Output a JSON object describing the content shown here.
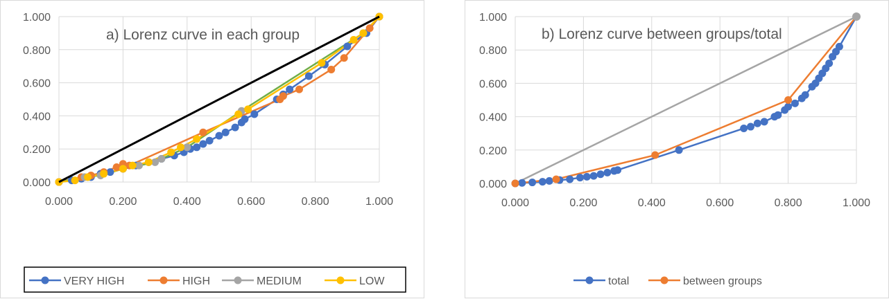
{
  "chart_data": [
    {
      "type": "line",
      "title": "a) Lorenz curve in each group",
      "xlim": [
        0,
        1
      ],
      "ylim": [
        0,
        1
      ],
      "x_ticks": [
        "0.000",
        "0.200",
        "0.400",
        "0.600",
        "0.800",
        "1.000"
      ],
      "y_ticks": [
        "0.000",
        "0.200",
        "0.400",
        "0.600",
        "0.800",
        "1.000"
      ],
      "grid": true,
      "legend_position": "bottom-boxed",
      "equality_line": {
        "color": "#000000",
        "points": [
          [
            0,
            0
          ],
          [
            1,
            1
          ]
        ]
      },
      "series": [
        {
          "name": "VERY HIGH",
          "color": "#4472c4",
          "points": [
            [
              0,
              0
            ],
            [
              0.04,
              0.01
            ],
            [
              0.07,
              0.02
            ],
            [
              0.1,
              0.03
            ],
            [
              0.13,
              0.05
            ],
            [
              0.16,
              0.06
            ],
            [
              0.2,
              0.08
            ],
            [
              0.24,
              0.1
            ],
            [
              0.28,
              0.12
            ],
            [
              0.32,
              0.14
            ],
            [
              0.36,
              0.16
            ],
            [
              0.39,
              0.18
            ],
            [
              0.41,
              0.2
            ],
            [
              0.43,
              0.21
            ],
            [
              0.45,
              0.23
            ],
            [
              0.47,
              0.25
            ],
            [
              0.5,
              0.28
            ],
            [
              0.52,
              0.3
            ],
            [
              0.55,
              0.33
            ],
            [
              0.57,
              0.36
            ],
            [
              0.58,
              0.38
            ],
            [
              0.61,
              0.41
            ],
            [
              0.68,
              0.5
            ],
            [
              0.7,
              0.53
            ],
            [
              0.72,
              0.56
            ],
            [
              0.78,
              0.64
            ],
            [
              0.83,
              0.71
            ],
            [
              0.9,
              0.82
            ],
            [
              0.96,
              0.9
            ],
            [
              1,
              1
            ]
          ]
        },
        {
          "name": "HIGH",
          "color": "#ed7d31",
          "points": [
            [
              0,
              0
            ],
            [
              0.07,
              0.03
            ],
            [
              0.1,
              0.04
            ],
            [
              0.14,
              0.06
            ],
            [
              0.18,
              0.09
            ],
            [
              0.2,
              0.11
            ],
            [
              0.22,
              0.1
            ],
            [
              0.45,
              0.3
            ],
            [
              0.69,
              0.5
            ],
            [
              0.7,
              0.52
            ],
            [
              0.75,
              0.56
            ],
            [
              0.85,
              0.68
            ],
            [
              0.89,
              0.75
            ],
            [
              0.97,
              0.93
            ],
            [
              1,
              1
            ]
          ]
        },
        {
          "name": "MEDIUM",
          "color": "#a5a5a5",
          "line_color": "#70ad47",
          "points": [
            [
              0,
              0
            ],
            [
              0.08,
              0.03
            ],
            [
              0.13,
              0.04
            ],
            [
              0.2,
              0.08
            ],
            [
              0.25,
              0.1
            ],
            [
              0.3,
              0.12
            ],
            [
              0.32,
              0.14
            ],
            [
              0.4,
              0.21
            ],
            [
              0.57,
              0.43
            ],
            [
              0.95,
              0.9
            ],
            [
              1,
              1
            ]
          ]
        },
        {
          "name": "LOW",
          "color": "#ffc000",
          "points": [
            [
              0,
              0
            ],
            [
              0.05,
              0.01
            ],
            [
              0.09,
              0.03
            ],
            [
              0.14,
              0.05
            ],
            [
              0.2,
              0.08
            ],
            [
              0.23,
              0.1
            ],
            [
              0.28,
              0.12
            ],
            [
              0.35,
              0.18
            ],
            [
              0.38,
              0.21
            ],
            [
              0.43,
              0.26
            ],
            [
              0.56,
              0.41
            ],
            [
              0.59,
              0.44
            ],
            [
              0.82,
              0.72
            ],
            [
              0.92,
              0.86
            ],
            [
              0.95,
              0.9
            ],
            [
              1,
              1
            ]
          ]
        }
      ]
    },
    {
      "type": "line",
      "title": "b) Lorenz curve between groups/total",
      "xlim": [
        0,
        1
      ],
      "ylim": [
        0,
        1
      ],
      "x_ticks": [
        "0.000",
        "0.200",
        "0.400",
        "0.600",
        "0.800",
        "1.000"
      ],
      "y_ticks": [
        "0.000",
        "0.200",
        "0.400",
        "0.600",
        "0.800",
        "1.000"
      ],
      "grid": true,
      "legend_position": "bottom",
      "equality_line": {
        "color": "#a5a5a5",
        "points": [
          [
            0,
            0
          ],
          [
            1,
            1
          ]
        ]
      },
      "series": [
        {
          "name": "total",
          "color": "#4472c4",
          "points": [
            [
              0,
              0
            ],
            [
              0.02,
              0.003
            ],
            [
              0.05,
              0.006
            ],
            [
              0.08,
              0.01
            ],
            [
              0.1,
              0.015
            ],
            [
              0.13,
              0.02
            ],
            [
              0.16,
              0.025
            ],
            [
              0.19,
              0.035
            ],
            [
              0.21,
              0.04
            ],
            [
              0.23,
              0.045
            ],
            [
              0.25,
              0.055
            ],
            [
              0.27,
              0.065
            ],
            [
              0.29,
              0.075
            ],
            [
              0.3,
              0.08
            ],
            [
              0.48,
              0.2
            ],
            [
              0.67,
              0.33
            ],
            [
              0.69,
              0.34
            ],
            [
              0.71,
              0.36
            ],
            [
              0.73,
              0.37
            ],
            [
              0.76,
              0.4
            ],
            [
              0.77,
              0.41
            ],
            [
              0.79,
              0.44
            ],
            [
              0.8,
              0.46
            ],
            [
              0.82,
              0.48
            ],
            [
              0.84,
              0.51
            ],
            [
              0.85,
              0.53
            ],
            [
              0.87,
              0.58
            ],
            [
              0.88,
              0.6
            ],
            [
              0.89,
              0.63
            ],
            [
              0.9,
              0.66
            ],
            [
              0.91,
              0.69
            ],
            [
              0.92,
              0.72
            ],
            [
              0.93,
              0.76
            ],
            [
              0.94,
              0.79
            ],
            [
              0.95,
              0.82
            ],
            [
              1,
              1
            ]
          ]
        },
        {
          "name": "between  groups",
          "color": "#ed7d31",
          "points": [
            [
              0,
              0
            ],
            [
              0.12,
              0.025
            ],
            [
              0.41,
              0.17
            ],
            [
              0.8,
              0.5
            ],
            [
              1,
              1
            ]
          ]
        }
      ],
      "extra_markers": [
        {
          "color": "#a5a5a5",
          "points": [
            [
              1,
              1
            ]
          ]
        }
      ]
    }
  ]
}
